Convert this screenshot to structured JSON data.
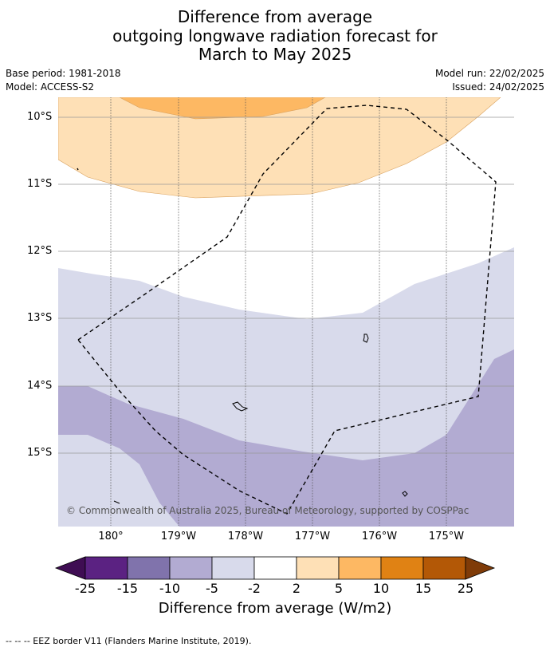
{
  "title": {
    "line1": "Difference from average",
    "line2": "outgoing longwave radiation forecast for",
    "line3": "March to May 2025"
  },
  "meta": {
    "base_period": "Base period: 1981-2018",
    "model": "Model: ACCESS-S2",
    "model_run": "Model run: 22/02/2025",
    "issued": "Issued: 24/02/2025"
  },
  "map": {
    "lat_labels": [
      "10°S",
      "11°S",
      "12°S",
      "13°S",
      "14°S",
      "15°S"
    ],
    "lon_labels": [
      "180°",
      "179°W",
      "178°W",
      "177°W",
      "176°W",
      "175°W"
    ],
    "copyright": "© Commonwealth of Australia 2025, Bureau of Meteorology, supported by COSPPac"
  },
  "colorbar": {
    "title": "Difference from average (W/m2)",
    "tick_labels": [
      "-25",
      "-15",
      "-10",
      "-5",
      "-2",
      "2",
      "5",
      "10",
      "15",
      "25"
    ],
    "colors": {
      "lt_-25": "#3f0d53",
      "-25_-15": "#5b2282",
      "-15_-10": "#8073ac",
      "-10_-5": "#b2abd2",
      "-5_-2": "#d8daeb",
      "-2_2": "#ffffff",
      "2_5": "#fee0b6",
      "5_10": "#fdb863",
      "10_15": "#e08214",
      "15_25": "#b35806",
      "gt_25": "#7f3b08"
    }
  },
  "legend": {
    "eez": "--  --  -- EEZ border V11 (Flanders Marine Institute, 2019)."
  }
}
